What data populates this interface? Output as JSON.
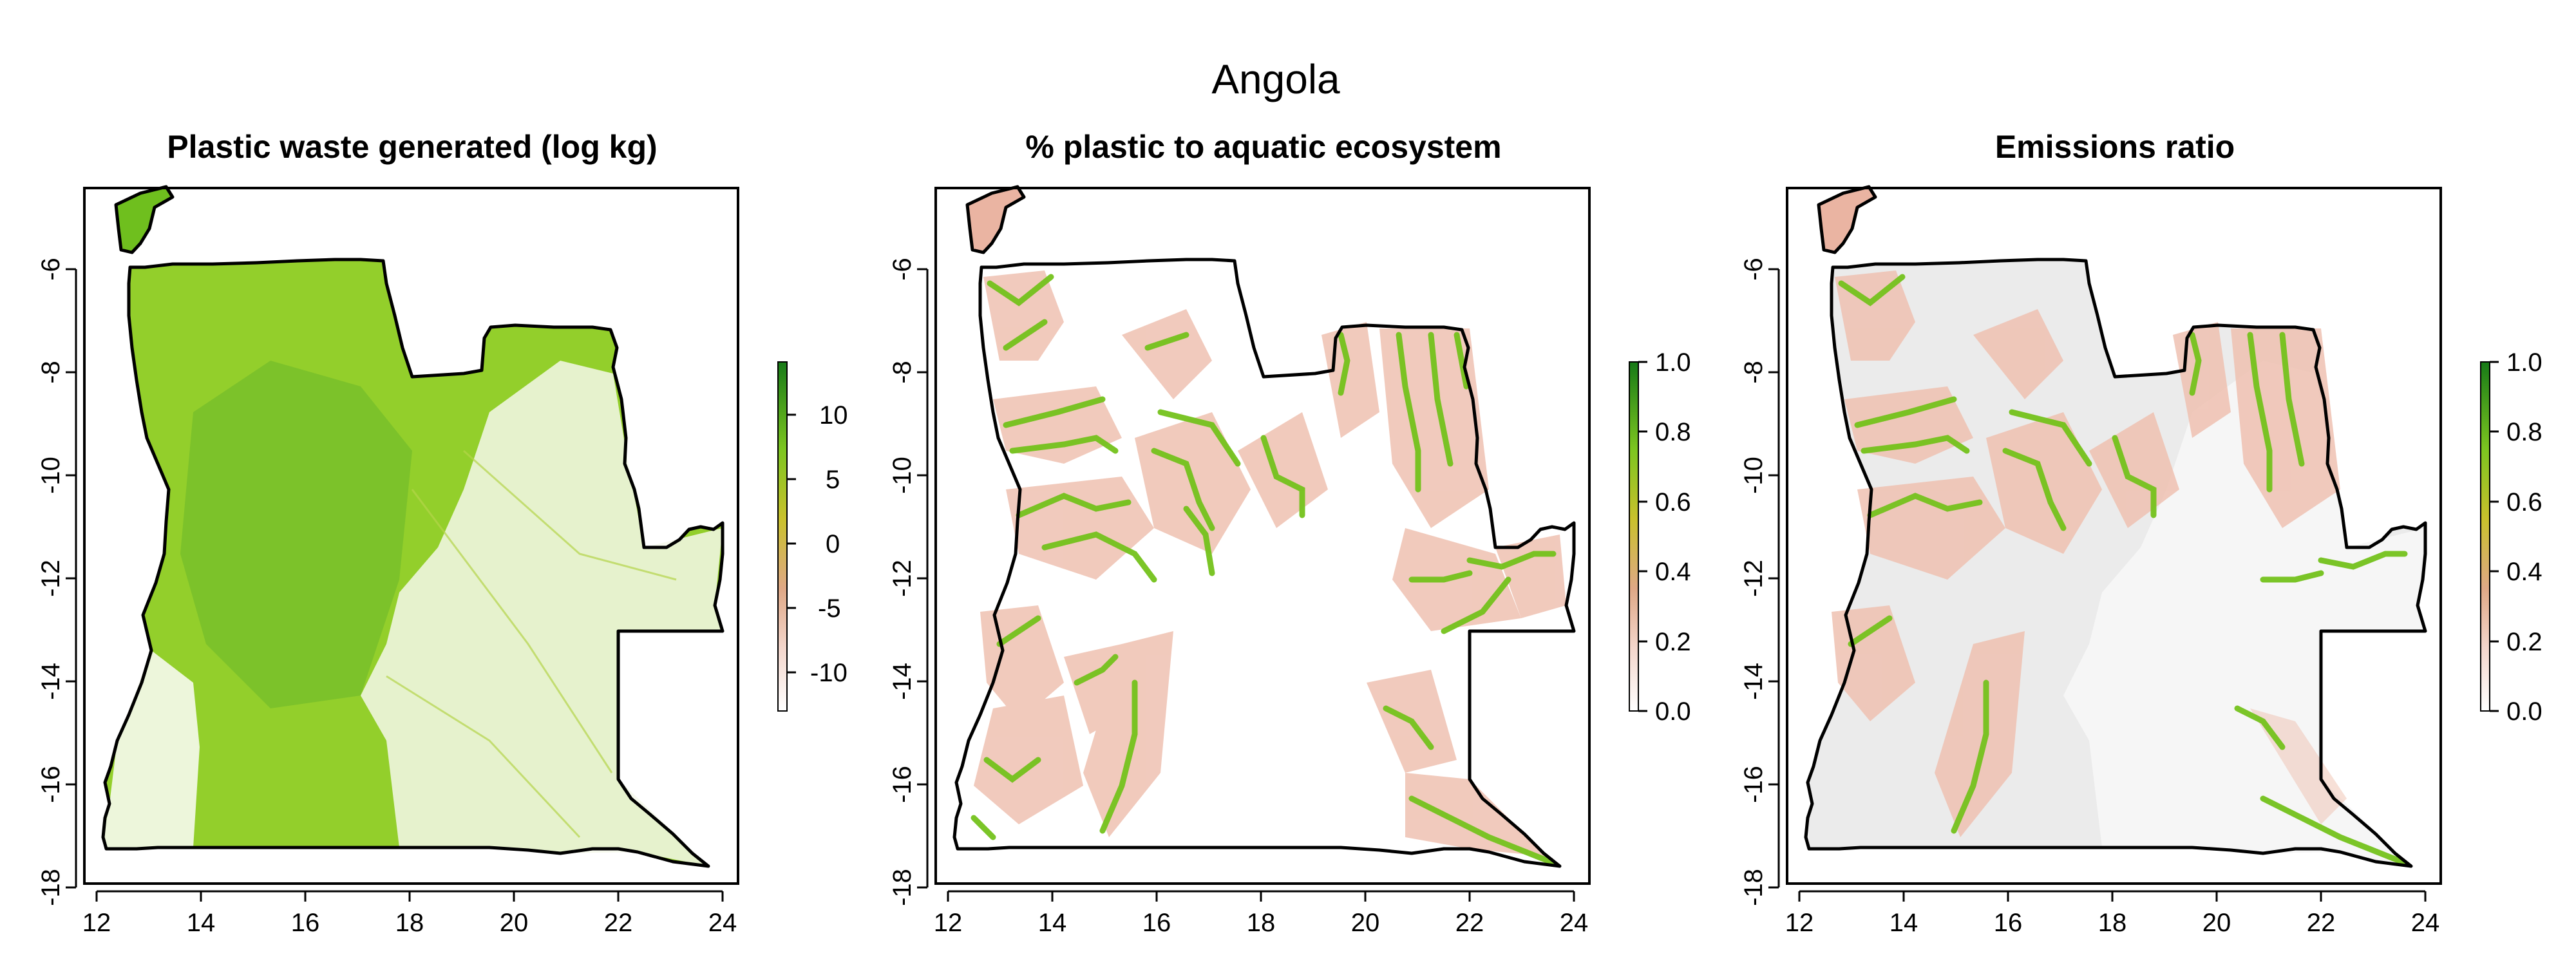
{
  "title": "Angola",
  "panels": [
    {
      "title": "Plastic waste generated (log kg)",
      "x_ticks": [
        "12",
        "14",
        "16",
        "18",
        "20",
        "22",
        "24"
      ],
      "y_ticks": [
        "-6",
        "-8",
        "-10",
        "-12",
        "-14",
        "-16",
        "-18"
      ],
      "legend_ticks": [
        "10",
        "5",
        "0",
        "-5",
        "-10"
      ],
      "legend_range": [
        -13,
        14
      ],
      "legend_colors": [
        "#ffffff",
        "#f0c8b8",
        "#d9a06a",
        "#c8c22a",
        "#7cc520",
        "#1a7a1a"
      ]
    },
    {
      "title": "% plastic to aquatic ecosystem",
      "x_ticks": [
        "12",
        "14",
        "16",
        "18",
        "20",
        "22",
        "24"
      ],
      "y_ticks": [
        "-6",
        "-8",
        "-10",
        "-12",
        "-14",
        "-16",
        "-18"
      ],
      "legend_ticks": [
        "1.0",
        "0.8",
        "0.6",
        "0.4",
        "0.2",
        "0.0"
      ],
      "legend_range": [
        0,
        1
      ],
      "legend_colors": [
        "#ffffff",
        "#f0c8b8",
        "#d9a06a",
        "#c8c22a",
        "#7cc520",
        "#1a7a1a"
      ]
    },
    {
      "title": "Emissions ratio",
      "x_ticks": [
        "12",
        "14",
        "16",
        "18",
        "20",
        "22",
        "24"
      ],
      "y_ticks": [
        "-6",
        "-8",
        "-10",
        "-12",
        "-14",
        "-16",
        "-18"
      ],
      "legend_ticks": [
        "1.0",
        "0.8",
        "0.6",
        "0.4",
        "0.2",
        "0.0"
      ],
      "legend_range": [
        0,
        1
      ],
      "legend_colors": [
        "#ffffff",
        "#f0c8b8",
        "#d9a06a",
        "#c8c22a",
        "#7cc520",
        "#1a7a1a"
      ]
    }
  ]
}
